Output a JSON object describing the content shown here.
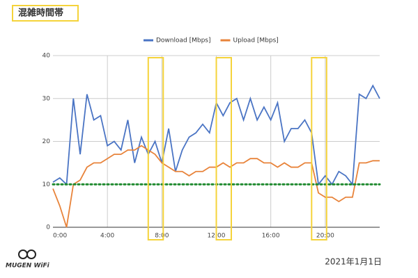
{
  "header": {
    "title": "混雑時間帯"
  },
  "chart_data": {
    "type": "line",
    "x": [
      0,
      0.5,
      1,
      1.5,
      2,
      2.5,
      3,
      3.5,
      4,
      4.5,
      5,
      5.5,
      6,
      6.5,
      7,
      7.5,
      8,
      8.5,
      9,
      9.5,
      10,
      10.5,
      11,
      11.5,
      12,
      12.5,
      13,
      13.5,
      14,
      14.5,
      15,
      15.5,
      16,
      16.5,
      17,
      17.5,
      18,
      18.5,
      19,
      19.5,
      20,
      20.5,
      21,
      21.5,
      22,
      22.5,
      23,
      23.5,
      24
    ],
    "series": [
      {
        "name": "Download [Mbps]",
        "color": "#4a74c4",
        "values": [
          10.5,
          11.5,
          10,
          30,
          17,
          31,
          25,
          26,
          19,
          20,
          18,
          25,
          15,
          21,
          17,
          20,
          15,
          23,
          13,
          18,
          21,
          22,
          24,
          22,
          29,
          26,
          29,
          30,
          25,
          30,
          25,
          28,
          25,
          29,
          20,
          23,
          23,
          25,
          22,
          10,
          12,
          10,
          13,
          12,
          10,
          31,
          30,
          33,
          30
        ]
      },
      {
        "name": "Upload [Mbps]",
        "color": "#e8833a",
        "values": [
          9,
          5,
          0,
          10,
          11,
          14,
          15,
          15,
          16,
          17,
          17,
          18,
          18,
          19,
          18,
          17,
          15,
          14,
          13,
          13,
          12,
          13,
          13,
          14,
          14,
          15,
          14,
          15,
          15,
          16,
          16,
          15,
          15,
          14,
          15,
          14,
          14,
          15,
          15,
          8,
          7,
          7,
          6,
          7,
          7,
          15,
          15,
          15.5,
          15.5
        ]
      }
    ],
    "xlim": [
      0,
      24
    ],
    "xticks": [
      {
        "value": 0,
        "label": "0:00"
      },
      {
        "value": 4,
        "label": "4:00"
      },
      {
        "value": 8,
        "label": "8:00"
      },
      {
        "value": 12,
        "label": "12:00"
      },
      {
        "value": 16,
        "label": "16:00"
      },
      {
        "value": 20,
        "label": "20:00"
      }
    ],
    "ylim": [
      0,
      40
    ],
    "yticks": [
      0,
      10,
      20,
      30,
      40
    ],
    "grid": true,
    "legend": "top",
    "reference_line": {
      "value": 10,
      "color": "#1e8a2e"
    },
    "highlights": [
      {
        "start": 7,
        "end": 8.1
      },
      {
        "start": 12,
        "end": 13.1
      },
      {
        "start": 19,
        "end": 20.1
      }
    ],
    "highlight_color": "#f5d33a"
  },
  "footer": {
    "logo": "MUGEN WiFi",
    "date": "2021年1月1日"
  }
}
